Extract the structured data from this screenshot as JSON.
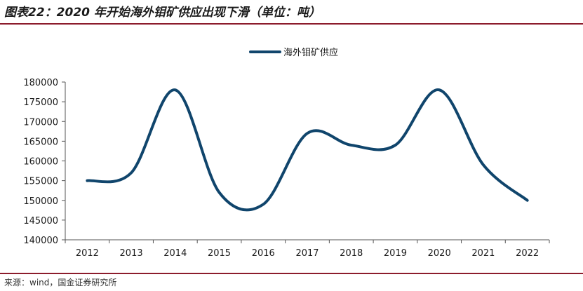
{
  "header": {
    "title": "图表22：2020 年开始海外钼矿供应出现下滑（单位：吨）"
  },
  "footer": {
    "source": "来源：wind，国金证券研究所"
  },
  "colors": {
    "rule": "#8c1c2c",
    "series": "#10456c"
  },
  "chart_data": {
    "type": "line",
    "title": "",
    "xlabel": "",
    "ylabel": "",
    "smooth": true,
    "legend": "top-center",
    "grid": false,
    "categories": [
      "2012",
      "2013",
      "2014",
      "2015",
      "2016",
      "2017",
      "2018",
      "2019",
      "2020",
      "2021",
      "2022"
    ],
    "ylim": [
      140000,
      180000
    ],
    "yticks": [
      140000,
      145000,
      150000,
      155000,
      160000,
      165000,
      170000,
      175000,
      180000
    ],
    "series": [
      {
        "name": "海外钼矿供应",
        "values": [
          155000,
          157000,
          178000,
          152000,
          149000,
          167000,
          164000,
          164000,
          178000,
          159000,
          150000
        ]
      }
    ]
  }
}
